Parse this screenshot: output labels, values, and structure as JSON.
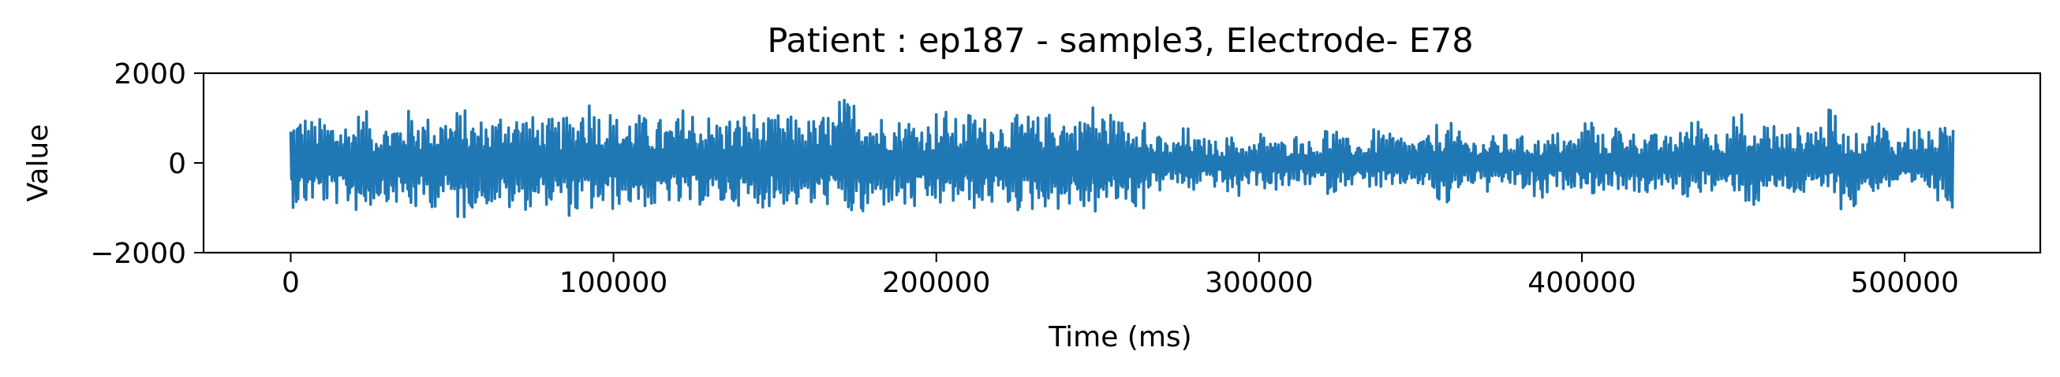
{
  "chart_data": {
    "type": "line",
    "title": "Patient : ep187 - sample3, Electrode- E78",
    "xlabel": "Time (ms)",
    "ylabel": "Value",
    "xlim": [
      -27000,
      542000
    ],
    "ylim": [
      -2000,
      2000
    ],
    "x_ticks": [
      0,
      100000,
      200000,
      300000,
      400000,
      500000
    ],
    "x_tick_labels": [
      "0",
      "100000",
      "200000",
      "300000",
      "400000",
      "500000"
    ],
    "y_ticks": [
      -2000,
      0,
      2000
    ],
    "y_tick_labels": [
      "−2000",
      "0",
      "2000"
    ],
    "grid": false,
    "legend": "none",
    "colors": {
      "series": "#1f77b4"
    },
    "series": [
      {
        "x": [
          0,
          5000,
          10000,
          15000,
          20000,
          25000,
          30000,
          35000,
          40000,
          45000,
          50000,
          55000,
          60000,
          65000,
          70000,
          75000,
          80000,
          85000,
          90000,
          95000,
          100000,
          105000,
          110000,
          115000,
          120000,
          125000,
          130000,
          135000,
          140000,
          145000,
          150000,
          155000,
          160000,
          165000,
          170000,
          175000,
          180000,
          185000,
          190000,
          195000,
          200000,
          205000,
          210000,
          215000,
          220000,
          225000,
          230000,
          235000,
          240000,
          245000,
          250000,
          255000,
          260000,
          265000,
          270000,
          275000,
          280000,
          285000,
          290000,
          295000,
          300000,
          305000,
          310000,
          315000,
          320000,
          325000,
          330000,
          335000,
          340000,
          345000,
          350000,
          355000,
          360000,
          365000,
          370000,
          375000,
          380000,
          385000,
          390000,
          395000,
          400000,
          405000,
          410000,
          415000,
          420000,
          425000,
          430000,
          435000,
          440000,
          445000,
          450000,
          455000,
          460000,
          465000,
          470000,
          475000,
          480000,
          485000,
          490000,
          495000,
          500000,
          505000,
          510000,
          515000
        ],
        "y_max": [
          1100,
          1000,
          1050,
          950,
          1150,
          900,
          1000,
          1200,
          1050,
          1100,
          1200,
          1000,
          1050,
          1300,
          1150,
          1050,
          1000,
          1100,
          1550,
          1200,
          1050,
          1100,
          1000,
          950,
          1250,
          1100,
          1000,
          1050,
          1150,
          1000,
          1100,
          1050,
          1000,
          1150,
          1450,
          1350,
          1100,
          1000,
          1050,
          950,
          1200,
          1000,
          1150,
          1050,
          1000,
          1100,
          1050,
          1150,
          1000,
          1350,
          1200,
          1000,
          1250,
          600,
          500,
          800,
          550,
          500,
          600,
          450,
          700,
          500,
          650,
          500,
          850,
          550,
          500,
          750,
          650,
          550,
          600,
          900,
          700,
          550,
          600,
          650,
          600,
          550,
          700,
          600,
          1100,
          650,
          900,
          700,
          650,
          600,
          950,
          1050,
          750,
          1100,
          650,
          1000,
          700,
          800,
          950,
          1200,
          700,
          650,
          1000,
          600,
          850,
          700,
          800,
          1200
        ],
        "y_min": [
          -1000,
          -900,
          -950,
          -1000,
          -1100,
          -850,
          -950,
          -1100,
          -1000,
          -950,
          -1300,
          -1000,
          -950,
          -1100,
          -1050,
          -950,
          -1000,
          -1200,
          -1100,
          -1100,
          -950,
          -1000,
          -1100,
          -900,
          -1050,
          -950,
          -1000,
          -950,
          -1100,
          -1000,
          -950,
          -1000,
          -1050,
          -950,
          -1200,
          -1300,
          -1000,
          -950,
          -1100,
          -1000,
          -1000,
          -950,
          -1050,
          -950,
          -1000,
          -1100,
          -1000,
          -1050,
          -1000,
          -1150,
          -1000,
          -950,
          -1050,
          -650,
          -500,
          -700,
          -500,
          -550,
          -800,
          -500,
          -600,
          -650,
          -500,
          -550,
          -700,
          -500,
          -550,
          -600,
          -700,
          -500,
          -650,
          -1100,
          -600,
          -500,
          -700,
          -550,
          -650,
          -900,
          -600,
          -550,
          -700,
          -650,
          -600,
          -750,
          -700,
          -600,
          -800,
          -650,
          -700,
          -650,
          -1000,
          -700,
          -650,
          -750,
          -700,
          -650,
          -1100,
          -700,
          -650,
          -600,
          -700,
          -650,
          -1000,
          -700
        ]
      }
    ]
  }
}
